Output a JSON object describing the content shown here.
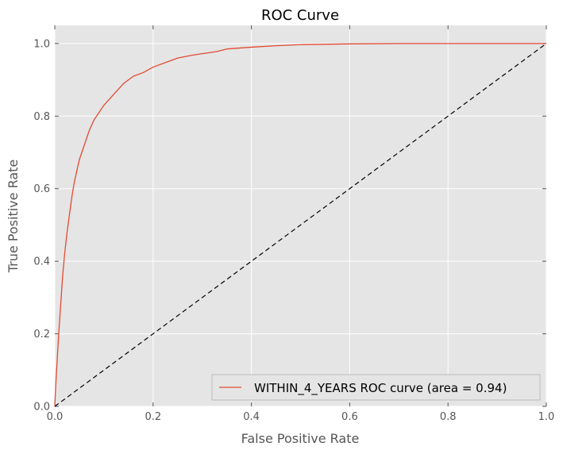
{
  "chart_data": {
    "type": "line",
    "title": "ROC Curve",
    "xlabel": "False Positive Rate",
    "ylabel": "True Positive Rate",
    "xlim": [
      0.0,
      1.0
    ],
    "ylim": [
      0.0,
      1.05
    ],
    "xticks": [
      "0.0",
      "0.2",
      "0.4",
      "0.6",
      "0.8",
      "1.0"
    ],
    "yticks": [
      "0.0",
      "0.2",
      "0.4",
      "0.6",
      "0.8",
      "1.0"
    ],
    "grid": true,
    "legend_position": "lower-right",
    "background": "#e5e5e5",
    "series": [
      {
        "name": "WITHIN_4_YEARS ROC curve (area = 0.94)",
        "color": "#e24a33",
        "x": [
          0.0,
          0.002,
          0.005,
          0.008,
          0.012,
          0.016,
          0.02,
          0.025,
          0.03,
          0.035,
          0.04,
          0.05,
          0.06,
          0.07,
          0.08,
          0.09,
          0.1,
          0.12,
          0.14,
          0.16,
          0.18,
          0.2,
          0.22,
          0.25,
          0.28,
          0.3,
          0.33,
          0.35,
          0.4,
          0.45,
          0.5,
          0.6,
          0.7,
          0.8,
          0.9,
          1.0
        ],
        "y": [
          0.0,
          0.06,
          0.13,
          0.2,
          0.28,
          0.36,
          0.42,
          0.48,
          0.53,
          0.58,
          0.62,
          0.68,
          0.72,
          0.76,
          0.79,
          0.81,
          0.83,
          0.86,
          0.89,
          0.91,
          0.92,
          0.935,
          0.945,
          0.96,
          0.968,
          0.972,
          0.978,
          0.985,
          0.99,
          0.994,
          0.997,
          0.999,
          1.0,
          1.0,
          1.0,
          1.0
        ]
      },
      {
        "color": "#000000",
        "dashed": true,
        "x": [
          0.0,
          1.0
        ],
        "y": [
          0.0,
          1.0
        ]
      }
    ]
  }
}
